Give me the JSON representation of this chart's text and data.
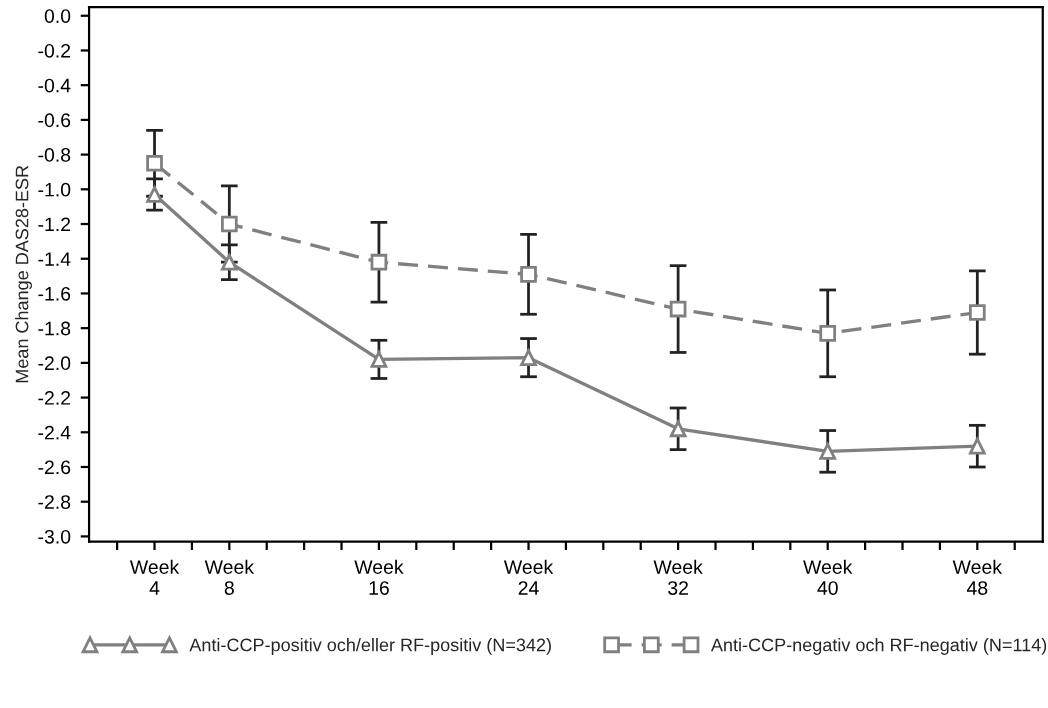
{
  "chart_data": {
    "type": "line",
    "ylabel": "Mean Change DAS28-ESR",
    "categories": [
      null,
      "Week\n4",
      null,
      "Week\n8",
      null,
      null,
      null,
      "Week\n16",
      null,
      null,
      null,
      "Week\n24",
      null,
      null,
      null,
      "Week\n32",
      null,
      null,
      null,
      "Week\n40",
      null,
      null,
      null,
      "Week\n48",
      null
    ],
    "ylim": [
      -3.03,
      0.05
    ],
    "yticks": [
      {
        "value": 0,
        "label": "0.0"
      },
      {
        "value": -0.2,
        "label": "-0.2"
      },
      {
        "value": -0.4,
        "label": "-0.4"
      },
      {
        "value": -0.6,
        "label": "-0.6"
      },
      {
        "value": -0.8,
        "label": "-0.8"
      },
      {
        "value": -1.0,
        "label": "-1.0"
      },
      {
        "value": -1.2,
        "label": "-1.2"
      },
      {
        "value": -1.4,
        "label": "-1.4"
      },
      {
        "value": -1.6,
        "label": "-1.6"
      },
      {
        "value": -1.8,
        "label": "-1.8"
      },
      {
        "value": -2.0,
        "label": "-2.0"
      },
      {
        "value": -2.2,
        "label": "-2.2"
      },
      {
        "value": -2.4,
        "label": "-2.4"
      },
      {
        "value": -2.6,
        "label": "-2.6"
      },
      {
        "value": -2.8,
        "label": "-2.8"
      },
      {
        "value": -3.0,
        "label": "-3.0"
      }
    ],
    "grid": false,
    "legend": "bottom",
    "series": [
      {
        "name": "Anti-CCP-positiv och/eller RF-positiv (N=342)",
        "color": "#808080",
        "marker": "triangle",
        "line_style": "solid",
        "values": [
          null,
          -1.03,
          null,
          -1.42,
          null,
          null,
          null,
          -1.98,
          null,
          null,
          null,
          -1.97,
          null,
          null,
          null,
          -2.38,
          null,
          null,
          null,
          -2.51,
          null,
          null,
          null,
          -2.48,
          null
        ],
        "errors": [
          null,
          0.09,
          null,
          0.1,
          null,
          null,
          null,
          0.11,
          null,
          null,
          null,
          0.11,
          null,
          null,
          null,
          0.12,
          null,
          null,
          null,
          0.12,
          null,
          null,
          null,
          0.12,
          null
        ]
      },
      {
        "name": "Anti-CCP-negativ och RF-negativ (N=114)",
        "color": "#808080",
        "marker": "square",
        "line_style": "dashed",
        "values": [
          null,
          -0.85,
          null,
          -1.2,
          null,
          null,
          null,
          -1.42,
          null,
          null,
          null,
          -1.49,
          null,
          null,
          null,
          -1.69,
          null,
          null,
          null,
          -1.83,
          null,
          null,
          null,
          -1.71,
          null
        ],
        "errors": [
          null,
          0.19,
          null,
          0.22,
          null,
          null,
          null,
          0.23,
          null,
          null,
          null,
          0.23,
          null,
          null,
          null,
          0.25,
          null,
          null,
          null,
          0.25,
          null,
          null,
          null,
          0.24,
          null
        ]
      }
    ]
  }
}
